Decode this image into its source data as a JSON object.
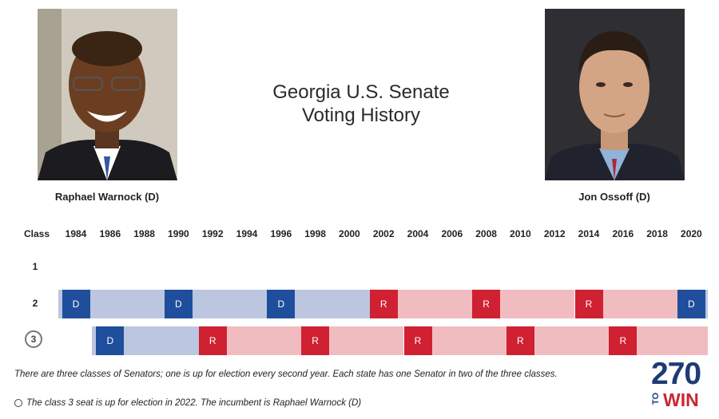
{
  "title": {
    "line1": "Georgia U.S. Senate",
    "line2": "Voting History"
  },
  "candidates": [
    {
      "name": "Raphael Warnock (D)",
      "photo": "portrait-raphael-warnock"
    },
    {
      "name": "Jon Ossoff (D)",
      "photo": "portrait-jon-ossoff"
    }
  ],
  "header": {
    "class_label": "Class",
    "years": [
      "1984",
      "1986",
      "1988",
      "1990",
      "1992",
      "1994",
      "1996",
      "1998",
      "2000",
      "2002",
      "2004",
      "2006",
      "2008",
      "2010",
      "2012",
      "2014",
      "2016",
      "2018",
      "2020"
    ]
  },
  "rows": [
    {
      "label": "1",
      "circled": false,
      "results": []
    },
    {
      "label": "2",
      "circled": false,
      "results": [
        {
          "year": "1984",
          "party": "D"
        },
        {
          "year": "1990",
          "party": "D"
        },
        {
          "year": "1996",
          "party": "D"
        },
        {
          "year": "2002",
          "party": "R"
        },
        {
          "year": "2008",
          "party": "R"
        },
        {
          "year": "2014",
          "party": "R"
        },
        {
          "year": "2020",
          "party": "D"
        }
      ]
    },
    {
      "label": "3",
      "circled": true,
      "results": [
        {
          "year": "1986",
          "party": "D"
        },
        {
          "year": "1992",
          "party": "R"
        },
        {
          "year": "1998",
          "party": "R"
        },
        {
          "year": "2004",
          "party": "R"
        },
        {
          "year": "2010",
          "party": "R"
        },
        {
          "year": "2016",
          "party": "R"
        }
      ]
    }
  ],
  "colors": {
    "D": "#1f4e9c",
    "D_light": "#bcc6e0",
    "R": "#cf2131",
    "R_light": "#f1bcc0"
  },
  "footnotes": {
    "note1": "There are three classes of Senators; one is up for election every second year. Each state has one Senator in two of the three classes.",
    "note2": "The class 3 seat is up for election in 2022. The incumbent is Raphael Warnock (D)"
  },
  "logo": {
    "top": "270",
    "to": "TO",
    "win": "WIN"
  }
}
